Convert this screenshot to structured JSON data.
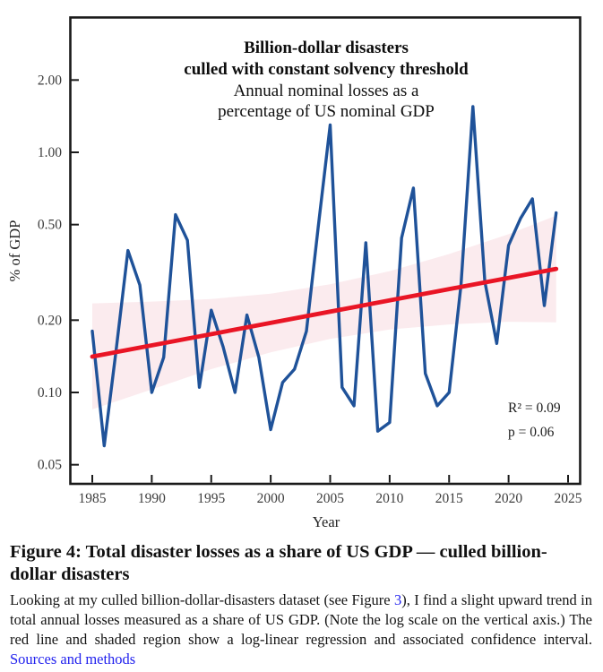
{
  "chart": {
    "title_line1": "Billion-dollar disasters",
    "title_line2": "culled with constant solvency threshold",
    "subtitle_line1": "Annual nominal losses as a",
    "subtitle_line2": "percentage of US nominal GDP",
    "y_axis_label": "% of GDP",
    "x_axis_label": "Year",
    "annotation_r2": "R² = 0.09",
    "annotation_p": "p = 0.06",
    "colors": {
      "series": "#1f5299",
      "trend": "#e91525",
      "band": "#fbebee",
      "axis": "#1a1a1a",
      "tick_label": "#3d3d3d"
    }
  },
  "chart_data": {
    "type": "line",
    "title": "Billion-dollar disasters culled with constant solvency threshold",
    "subtitle": "Annual nominal losses as a percentage of US nominal GDP",
    "xlabel": "Year",
    "ylabel": "% of GDP",
    "y_scale": "log",
    "xlim": [
      1983.1,
      2026.1
    ],
    "ylim": [
      0.045,
      2.7
    ],
    "x_ticks": [
      1985,
      1990,
      1995,
      2000,
      2005,
      2010,
      2015,
      2020,
      2025
    ],
    "y_ticks": [
      2.0,
      1.0,
      0.5,
      0.2,
      0.1,
      0.05
    ],
    "y_tick_labels": [
      "2.00",
      "1.00",
      "0.50",
      "0.20",
      "0.10",
      "0.05"
    ],
    "grid": false,
    "legend": "none",
    "x": [
      1985,
      1986,
      1987,
      1988,
      1989,
      1990,
      1991,
      1992,
      1993,
      1994,
      1995,
      1996,
      1997,
      1998,
      1999,
      2000,
      2001,
      2002,
      2003,
      2004,
      2005,
      2006,
      2007,
      2008,
      2009,
      2010,
      2011,
      2012,
      2013,
      2014,
      2015,
      2016,
      2017,
      2018,
      2019,
      2020,
      2021,
      2022,
      2023,
      2024
    ],
    "series": [
      {
        "name": "Annual nominal losses as % of US nominal GDP",
        "values": [
          0.18,
          0.06,
          0.15,
          0.39,
          0.28,
          0.1,
          0.14,
          0.55,
          0.43,
          0.105,
          0.22,
          0.155,
          0.1,
          0.21,
          0.14,
          0.07,
          0.11,
          0.125,
          0.18,
          0.49,
          1.3,
          0.105,
          0.088,
          0.42,
          0.069,
          0.075,
          0.44,
          0.71,
          0.12,
          0.088,
          0.1,
          0.28,
          1.55,
          0.29,
          0.16,
          0.41,
          0.53,
          0.64,
          0.23,
          0.56
        ]
      }
    ],
    "trend": {
      "type": "log-linear regression",
      "start": {
        "year": 1985,
        "value": 0.141
      },
      "end": {
        "year": 2024,
        "value": 0.327
      }
    },
    "ci_band": {
      "years": [
        1985,
        1990,
        1995,
        2000,
        2005,
        2010,
        2015,
        2020,
        2024
      ],
      "lower": [
        0.085,
        0.103,
        0.125,
        0.147,
        0.167,
        0.183,
        0.192,
        0.197,
        0.196
      ],
      "upper": [
        0.235,
        0.239,
        0.245,
        0.258,
        0.282,
        0.32,
        0.377,
        0.456,
        0.545
      ]
    },
    "stats": {
      "r_squared": 0.09,
      "p_value": 0.06
    }
  },
  "caption": {
    "heading": "Figure 4: Total disaster losses as a share of US GDP — culled billion-dollar disasters",
    "body_part1": "Looking at my culled billion-dollar-disasters dataset (see Figure ",
    "figure_link": "3",
    "body_part2": "), I find a slight upward trend in total annual losses measured as a share of US GDP. (Note the log scale on the vertical axis.) The red line and shaded region show a log-linear regression and associated confidence interval. ",
    "sources_link": "Sources and methods",
    "link_color": "#2222ee"
  }
}
